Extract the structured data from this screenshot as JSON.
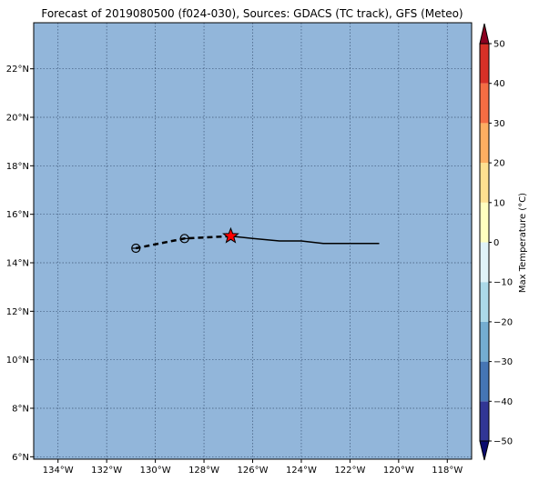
{
  "title": "Forecast of 2019080500 (f024-030), Sources: GDACS (TC track), GFS (Meteo)",
  "map": {
    "ocean_color": "#92b6da",
    "lon_range": [
      -135,
      -117
    ],
    "lat_range": [
      5.9,
      23.9
    ],
    "lon_ticks": [
      -134,
      -132,
      -130,
      -128,
      -126,
      -124,
      -122,
      -120,
      -118
    ],
    "lon_labels": [
      "134°W",
      "132°W",
      "130°W",
      "128°W",
      "126°W",
      "124°W",
      "122°W",
      "120°W",
      "118°W"
    ],
    "lat_ticks": [
      6,
      8,
      10,
      12,
      14,
      16,
      18,
      20,
      22
    ],
    "lat_labels": [
      "6°N",
      "8°N",
      "10°N",
      "12°N",
      "14°N",
      "16°N",
      "18°N",
      "20°N",
      "22°N"
    ],
    "gridlines": true
  },
  "track": {
    "observed": [
      [
        -120.8,
        14.8
      ],
      [
        -123.1,
        14.8
      ],
      [
        -124.0,
        14.9
      ],
      [
        -124.9,
        14.9
      ],
      [
        -126.0,
        15.0
      ],
      [
        -126.9,
        15.1
      ]
    ],
    "forecast": [
      [
        -126.9,
        15.1
      ],
      [
        -128.8,
        15.0
      ],
      [
        -130.8,
        14.6
      ]
    ],
    "current_position": [
      -126.9,
      15.1
    ],
    "forecast_points": [
      [
        -128.8,
        15.0
      ],
      [
        -130.8,
        14.6
      ]
    ],
    "current_marker_color": "#ff0000"
  },
  "colorbar": {
    "label": "Max Temperature (°C)",
    "tick_values": [
      -50,
      -40,
      -30,
      -20,
      -10,
      0,
      10,
      20,
      30,
      40,
      50
    ],
    "tick_labels": [
      "−50",
      "−40",
      "−30",
      "−20",
      "−10",
      "0",
      "10",
      "20",
      "30",
      "40",
      "50"
    ],
    "colors": [
      "#313695",
      "#4575b4",
      "#74add1",
      "#abd9e9",
      "#e0f3f8",
      "#ffffbf",
      "#fee090",
      "#fdae61",
      "#f46d43",
      "#d73027"
    ],
    "under_color": "#0b0b6e",
    "over_color": "#8b0020"
  }
}
